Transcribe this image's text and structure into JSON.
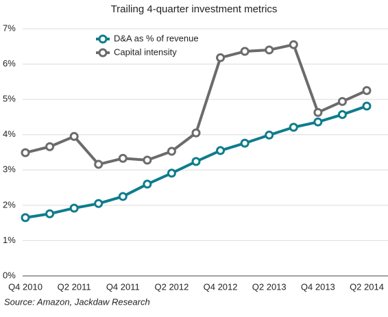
{
  "chart_data": {
    "type": "line",
    "title": "Trailing 4-quarter investment metrics",
    "source": "Source: Amazon, Jackdaw Research",
    "categories": [
      "Q4 2010",
      null,
      "Q2 2011",
      null,
      "Q4 2011",
      null,
      "Q2 2012",
      null,
      "Q4 2012",
      null,
      "Q2 2013",
      null,
      "Q4 2013",
      null,
      "Q2 2014"
    ],
    "series": [
      {
        "name": "D&A as % of revenue",
        "color": "#0e7c8c",
        "values": [
          1.65,
          1.76,
          1.92,
          2.05,
          2.25,
          2.6,
          2.91,
          3.24,
          3.55,
          3.76,
          3.99,
          4.21,
          4.36,
          4.57,
          4.81
        ]
      },
      {
        "name": "Capital intensity",
        "color": "#6b6b6b",
        "values": [
          3.49,
          3.66,
          3.95,
          3.16,
          3.33,
          3.28,
          3.53,
          4.05,
          6.18,
          6.36,
          6.4,
          6.55,
          4.63,
          4.94,
          5.25
        ]
      }
    ],
    "ylim": [
      0,
      7
    ],
    "yticks": [
      {
        "value": 0,
        "label": "0%"
      },
      {
        "value": 1,
        "label": "1%"
      },
      {
        "value": 2,
        "label": "2%"
      },
      {
        "value": 3,
        "label": "3%"
      },
      {
        "value": 4,
        "label": "4%"
      },
      {
        "value": 5,
        "label": "5%"
      },
      {
        "value": 6,
        "label": "6%"
      },
      {
        "value": 7,
        "label": "7%"
      }
    ],
    "grid": true,
    "legend": "upper left"
  }
}
